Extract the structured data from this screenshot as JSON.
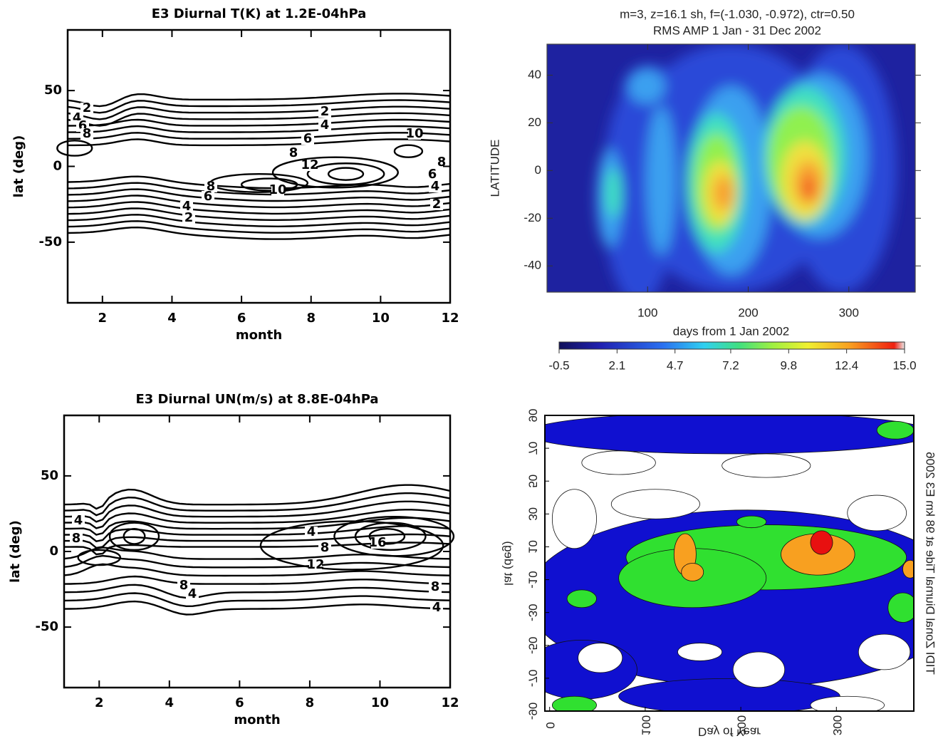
{
  "chart_data": [
    {
      "type": "contour",
      "title": "E3 Diurnal T(K) at  1.2E-04hPa",
      "x_label": "month",
      "y_label": "lat (deg)",
      "xlim": [
        1,
        12
      ],
      "xticks": [
        2,
        4,
        6,
        8,
        10,
        12
      ],
      "ylim": [
        -90,
        90
      ],
      "yticks": [
        -50,
        0,
        50
      ],
      "contour_labels": [
        2,
        4,
        6,
        8,
        2,
        4,
        6,
        8,
        10,
        12,
        10,
        8,
        6,
        4,
        2,
        8,
        6,
        4,
        2
      ]
    },
    {
      "type": "heatmap",
      "title": "m=3, z=16.1 sh, f=(-1.030, -0.972), ctr=0.50",
      "subtitle": "RMS AMP   1 Jan - 31 Dec 2002",
      "x_label": "days from  1 Jan 2002",
      "y_label": "LATITUDE",
      "xlim": [
        0,
        366
      ],
      "xticks": [
        100,
        200,
        300
      ],
      "ylim": [
        -51,
        53
      ],
      "yticks": [
        -40,
        -20,
        0,
        20,
        40
      ],
      "clim": [
        -0.5,
        15
      ],
      "colorbar_ticks": [
        -0.5,
        2.1,
        4.7,
        7.2,
        9.8,
        12.4,
        {
          "value": 15,
          "label": "15.0"
        }
      ]
    },
    {
      "type": "contour",
      "title": "E3 Diurnal UN(m/s) at  8.8E-04hPa",
      "x_label": "month",
      "y_label": "lat (deg)",
      "xlim": [
        1,
        12
      ],
      "xticks": [
        2,
        4,
        6,
        8,
        10,
        12
      ],
      "ylim": [
        -90,
        90
      ],
      "yticks": [
        -50,
        0,
        50
      ],
      "contour_labels": [
        4,
        8,
        4,
        8,
        12,
        16,
        8,
        4,
        8,
        4
      ]
    },
    {
      "type": "flipped-contour",
      "title": "TIDI Zonal Diurnal Tide at 98 km E3 2006",
      "x_label": "Day of Year",
      "y_label": "lat (deg)",
      "xlim": [
        -5,
        381
      ],
      "xticks": [
        0,
        100,
        200,
        300
      ],
      "ylim": [
        -90,
        90
      ],
      "yticks": [
        90,
        70,
        50,
        30,
        10,
        -10,
        -30,
        -50,
        -70,
        -90
      ]
    }
  ]
}
